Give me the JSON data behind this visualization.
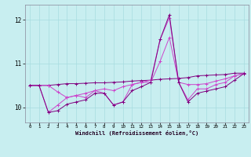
{
  "title": "",
  "xlabel": "Windchill (Refroidissement éolien,°C)",
  "ylabel": "",
  "bg_color": "#c8eef0",
  "grid_color": "#a8dce0",
  "line_color_dark": "#800080",
  "line_color_light": "#cc44cc",
  "xlim": [
    -0.5,
    23.5
  ],
  "ylim": [
    9.65,
    12.35
  ],
  "yticks": [
    10,
    11,
    12
  ],
  "xticks": [
    0,
    1,
    2,
    3,
    4,
    5,
    6,
    7,
    8,
    9,
    10,
    11,
    12,
    13,
    14,
    15,
    16,
    17,
    18,
    19,
    20,
    21,
    22,
    23
  ],
  "series": [
    {
      "color": "#800080",
      "data": [
        10.5,
        10.5,
        10.5,
        10.52,
        10.54,
        10.54,
        10.55,
        10.56,
        10.56,
        10.57,
        10.58,
        10.6,
        10.61,
        10.62,
        10.64,
        10.65,
        10.66,
        10.68,
        10.72,
        10.73,
        10.74,
        10.75,
        10.78,
        10.78
      ]
    },
    {
      "color": "#cc44cc",
      "data": [
        10.5,
        10.5,
        10.5,
        10.35,
        10.22,
        10.27,
        10.32,
        10.38,
        10.42,
        10.38,
        10.47,
        10.52,
        10.57,
        10.57,
        11.05,
        11.6,
        10.57,
        10.52,
        10.52,
        10.54,
        10.6,
        10.65,
        10.72,
        10.77
      ]
    },
    {
      "color": "#cc44cc",
      "data": [
        10.5,
        10.5,
        9.88,
        10.05,
        10.22,
        10.27,
        10.22,
        10.38,
        10.32,
        10.05,
        10.12,
        10.52,
        10.57,
        10.62,
        11.55,
        12.05,
        10.57,
        10.17,
        10.42,
        10.42,
        10.52,
        10.57,
        10.72,
        10.77
      ]
    },
    {
      "color": "#800080",
      "data": [
        10.5,
        10.5,
        9.88,
        9.92,
        10.07,
        10.12,
        10.17,
        10.32,
        10.32,
        10.05,
        10.12,
        10.38,
        10.47,
        10.57,
        11.55,
        12.12,
        10.57,
        10.12,
        10.32,
        10.37,
        10.42,
        10.47,
        10.62,
        10.77
      ]
    }
  ]
}
